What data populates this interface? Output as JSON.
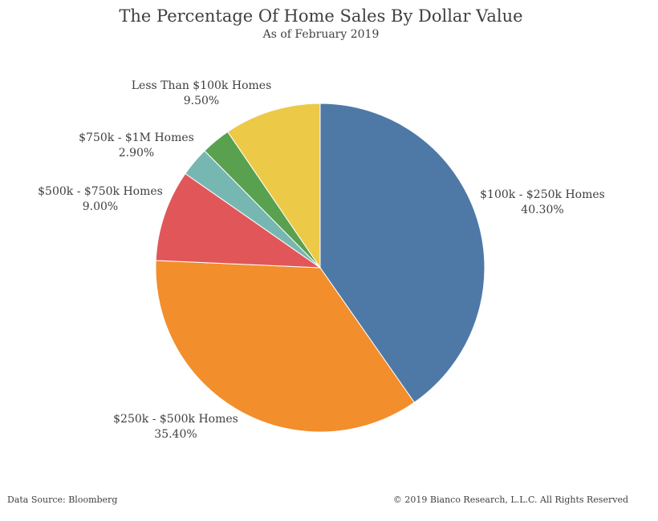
{
  "chart_data": {
    "type": "pie",
    "title": "The Percentage Of Home Sales By Dollar Value",
    "subtitle": "As of February 2019",
    "slices": [
      {
        "label": "$100k - $250k Homes",
        "value": 40.3,
        "value_label": "40.30%",
        "color": "#4e79a7"
      },
      {
        "label": "$250k - $500k Homes",
        "value": 35.4,
        "value_label": "35.40%",
        "color": "#f28e2b"
      },
      {
        "label": "$500k - $750k Homes",
        "value": 9.0,
        "value_label": "9.00%",
        "color": "#e15759"
      },
      {
        "label": "$750k - $1M Homes",
        "value": 2.9,
        "value_label": "2.90%",
        "color": "#76b7b2"
      },
      {
        "label": "",
        "value": 2.9,
        "value_label": "",
        "color": "#59a14f"
      },
      {
        "label": "Less Than $100k Homes",
        "value": 9.5,
        "value_label": "9.50%",
        "color": "#edc948"
      }
    ]
  },
  "footer": {
    "source": "Data Source: Bloomberg",
    "copyright": "© 2019 Bianco Research, L.L.C. All Rights Reserved"
  }
}
